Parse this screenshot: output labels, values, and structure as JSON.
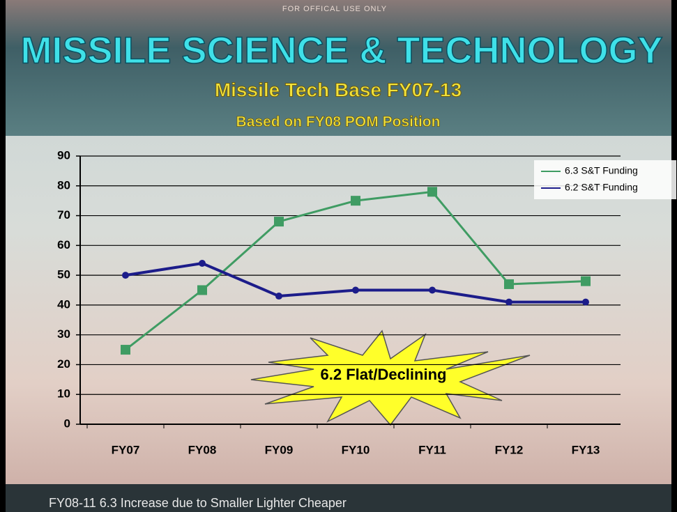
{
  "header": {
    "classification": "FOR OFFICAL USE ONLY",
    "title": "MISSILE SCIENCE & TECHNOLOGY"
  },
  "chart_data": {
    "type": "line",
    "title": "Missile Tech Base FY07-13",
    "subtitle": "Based on FY08 POM Position",
    "categories": [
      "FY07",
      "FY08",
      "FY09",
      "FY10",
      "FY11",
      "FY12",
      "FY13"
    ],
    "series": [
      {
        "name": "6.3 S&T Funding",
        "color": "#3f9c63",
        "values": [
          25,
          45,
          68,
          75,
          78,
          47,
          48
        ]
      },
      {
        "name": "6.2 S&T Funding",
        "color": "#1c1c8a",
        "values": [
          50,
          54,
          43,
          45,
          45,
          41,
          41
        ]
      }
    ],
    "ylim": [
      0,
      90
    ],
    "yticks": [
      0,
      10,
      20,
      30,
      40,
      50,
      60,
      70,
      80,
      90
    ],
    "grid": true,
    "legend": "upper right",
    "annotations": [
      "6.2 Flat/Declining"
    ]
  },
  "footer": {
    "text": "FY08-11 6.3 Increase due to Smaller Lighter Cheaper"
  }
}
